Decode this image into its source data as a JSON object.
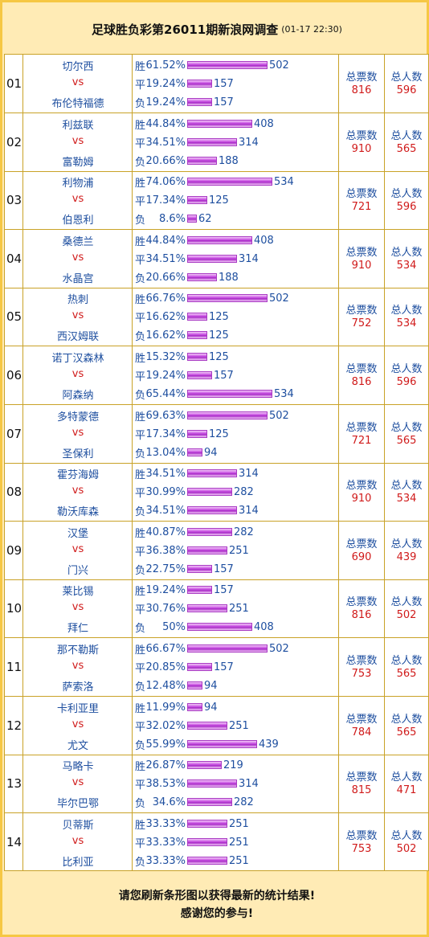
{
  "header": {
    "title": "足球胜负彩第26011期新浪网调查",
    "time": "(01-17 22:30)"
  },
  "labels": {
    "win": "胜",
    "draw": "平",
    "lose": "负",
    "vs": "vs",
    "total_votes": "总票数",
    "total_people": "总人数"
  },
  "matches": [
    {
      "no": "01",
      "home": "切尔西",
      "away": "布伦特福德",
      "win": {
        "pct": "61.52%",
        "count": "502"
      },
      "draw": {
        "pct": "19.24%",
        "count": "157"
      },
      "lose": {
        "pct": "19.24%",
        "count": "157"
      },
      "votes": "816",
      "people": "596"
    },
    {
      "no": "02",
      "home": "利兹联",
      "away": "富勒姆",
      "win": {
        "pct": "44.84%",
        "count": "408"
      },
      "draw": {
        "pct": "34.51%",
        "count": "314"
      },
      "lose": {
        "pct": "20.66%",
        "count": "188"
      },
      "votes": "910",
      "people": "565"
    },
    {
      "no": "03",
      "home": "利物浦",
      "away": "伯恩利",
      "win": {
        "pct": "74.06%",
        "count": "534"
      },
      "draw": {
        "pct": "17.34%",
        "count": "125"
      },
      "lose": {
        "pct": "8.6%",
        "count": "62"
      },
      "votes": "721",
      "people": "596"
    },
    {
      "no": "04",
      "home": "桑德兰",
      "away": "水晶宫",
      "win": {
        "pct": "44.84%",
        "count": "408"
      },
      "draw": {
        "pct": "34.51%",
        "count": "314"
      },
      "lose": {
        "pct": "20.66%",
        "count": "188"
      },
      "votes": "910",
      "people": "534"
    },
    {
      "no": "05",
      "home": "热刺",
      "away": "西汉姆联",
      "win": {
        "pct": "66.76%",
        "count": "502"
      },
      "draw": {
        "pct": "16.62%",
        "count": "125"
      },
      "lose": {
        "pct": "16.62%",
        "count": "125"
      },
      "votes": "752",
      "people": "534"
    },
    {
      "no": "06",
      "home": "诺丁汉森林",
      "away": "阿森纳",
      "win": {
        "pct": "15.32%",
        "count": "125"
      },
      "draw": {
        "pct": "19.24%",
        "count": "157"
      },
      "lose": {
        "pct": "65.44%",
        "count": "534"
      },
      "votes": "816",
      "people": "596"
    },
    {
      "no": "07",
      "home": "多特蒙德",
      "away": "圣保利",
      "win": {
        "pct": "69.63%",
        "count": "502"
      },
      "draw": {
        "pct": "17.34%",
        "count": "125"
      },
      "lose": {
        "pct": "13.04%",
        "count": "94"
      },
      "votes": "721",
      "people": "565"
    },
    {
      "no": "08",
      "home": "霍芬海姆",
      "away": "勒沃库森",
      "win": {
        "pct": "34.51%",
        "count": "314"
      },
      "draw": {
        "pct": "30.99%",
        "count": "282"
      },
      "lose": {
        "pct": "34.51%",
        "count": "314"
      },
      "votes": "910",
      "people": "534"
    },
    {
      "no": "09",
      "home": "汉堡",
      "away": "门兴",
      "win": {
        "pct": "40.87%",
        "count": "282"
      },
      "draw": {
        "pct": "36.38%",
        "count": "251"
      },
      "lose": {
        "pct": "22.75%",
        "count": "157"
      },
      "votes": "690",
      "people": "439"
    },
    {
      "no": "10",
      "home": "莱比锡",
      "away": "拜仁",
      "win": {
        "pct": "19.24%",
        "count": "157"
      },
      "draw": {
        "pct": "30.76%",
        "count": "251"
      },
      "lose": {
        "pct": "50%",
        "count": "408"
      },
      "votes": "816",
      "people": "502"
    },
    {
      "no": "11",
      "home": "那不勒斯",
      "away": "萨索洛",
      "win": {
        "pct": "66.67%",
        "count": "502"
      },
      "draw": {
        "pct": "20.85%",
        "count": "157"
      },
      "lose": {
        "pct": "12.48%",
        "count": "94"
      },
      "votes": "753",
      "people": "565"
    },
    {
      "no": "12",
      "home": "卡利亚里",
      "away": "尤文",
      "win": {
        "pct": "11.99%",
        "count": "94"
      },
      "draw": {
        "pct": "32.02%",
        "count": "251"
      },
      "lose": {
        "pct": "55.99%",
        "count": "439"
      },
      "votes": "784",
      "people": "565"
    },
    {
      "no": "13",
      "home": "马略卡",
      "away": "毕尔巴鄂",
      "win": {
        "pct": "26.87%",
        "count": "219"
      },
      "draw": {
        "pct": "38.53%",
        "count": "314"
      },
      "lose": {
        "pct": "34.6%",
        "count": "282"
      },
      "votes": "815",
      "people": "471"
    },
    {
      "no": "14",
      "home": "贝蒂斯",
      "away": "比利亚",
      "win": {
        "pct": "33.33%",
        "count": "251"
      },
      "draw": {
        "pct": "33.33%",
        "count": "251"
      },
      "lose": {
        "pct": "33.33%",
        "count": "251"
      },
      "votes": "753",
      "people": "502"
    }
  ],
  "footer": {
    "line1": "请您刷新条形图以获得最新的统计结果!",
    "line2": "感谢您的参与!"
  },
  "colors": {
    "team": "#1D4E9F",
    "vs": "#D01A1A",
    "bar": "#C64BE0",
    "border": "#C9A227",
    "frame": "#F6C744"
  }
}
